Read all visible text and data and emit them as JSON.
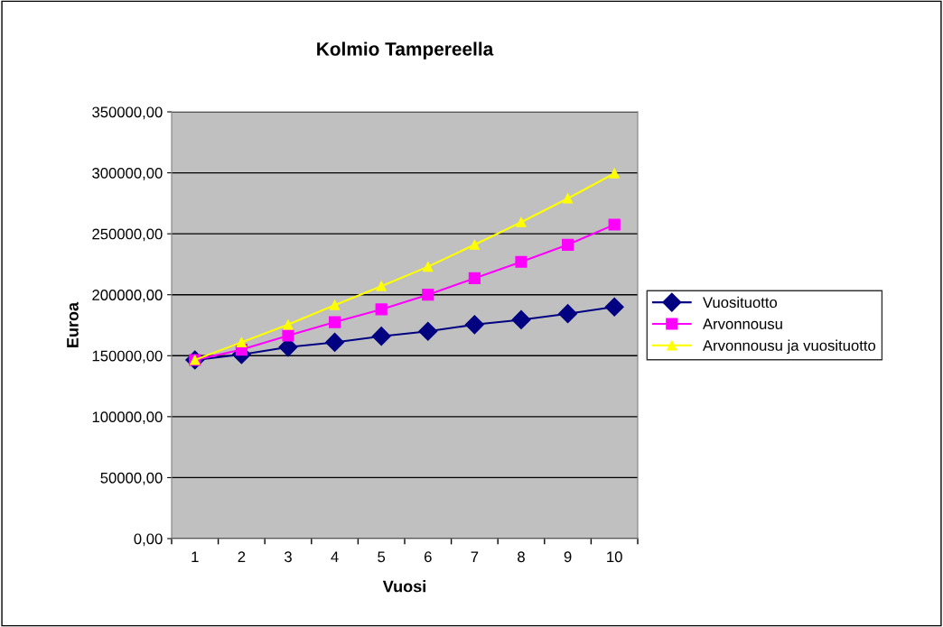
{
  "chart_data": {
    "type": "line",
    "title": "Kolmio Tampereella",
    "xlabel": "Vuosi",
    "ylabel": "Euroa",
    "categories": [
      "1",
      "2",
      "3",
      "4",
      "5",
      "6",
      "7",
      "8",
      "9",
      "10"
    ],
    "series": [
      {
        "name": "Vuosituotto",
        "color": "#000080",
        "marker": "diamond",
        "values": [
          146500,
          151000,
          157000,
          161000,
          166000,
          170000,
          175500,
          179500,
          184500,
          190000
        ]
      },
      {
        "name": "Arvonnousu",
        "color": "#ff00ff",
        "marker": "square",
        "values": [
          146500,
          155000,
          166500,
          177500,
          188000,
          200000,
          213500,
          227000,
          241000,
          257500
        ]
      },
      {
        "name": "Arvonnousu ja vuosituotto",
        "color": "#ffff00",
        "marker": "triangle",
        "values": [
          146500,
          161000,
          175500,
          191500,
          207000,
          223000,
          241000,
          259500,
          279000,
          299500
        ]
      }
    ],
    "ylim": [
      0,
      350000
    ],
    "yticks": [
      {
        "value": 0,
        "label": "0,00"
      },
      {
        "value": 50000,
        "label": "50000,00"
      },
      {
        "value": 100000,
        "label": "100000,00"
      },
      {
        "value": 150000,
        "label": "150000,00"
      },
      {
        "value": 200000,
        "label": "200000,00"
      },
      {
        "value": 250000,
        "label": "250000,00"
      },
      {
        "value": 300000,
        "label": "300000,00"
      },
      {
        "value": 350000,
        "label": "350000,00"
      }
    ],
    "grid": "y",
    "legend": "right"
  }
}
